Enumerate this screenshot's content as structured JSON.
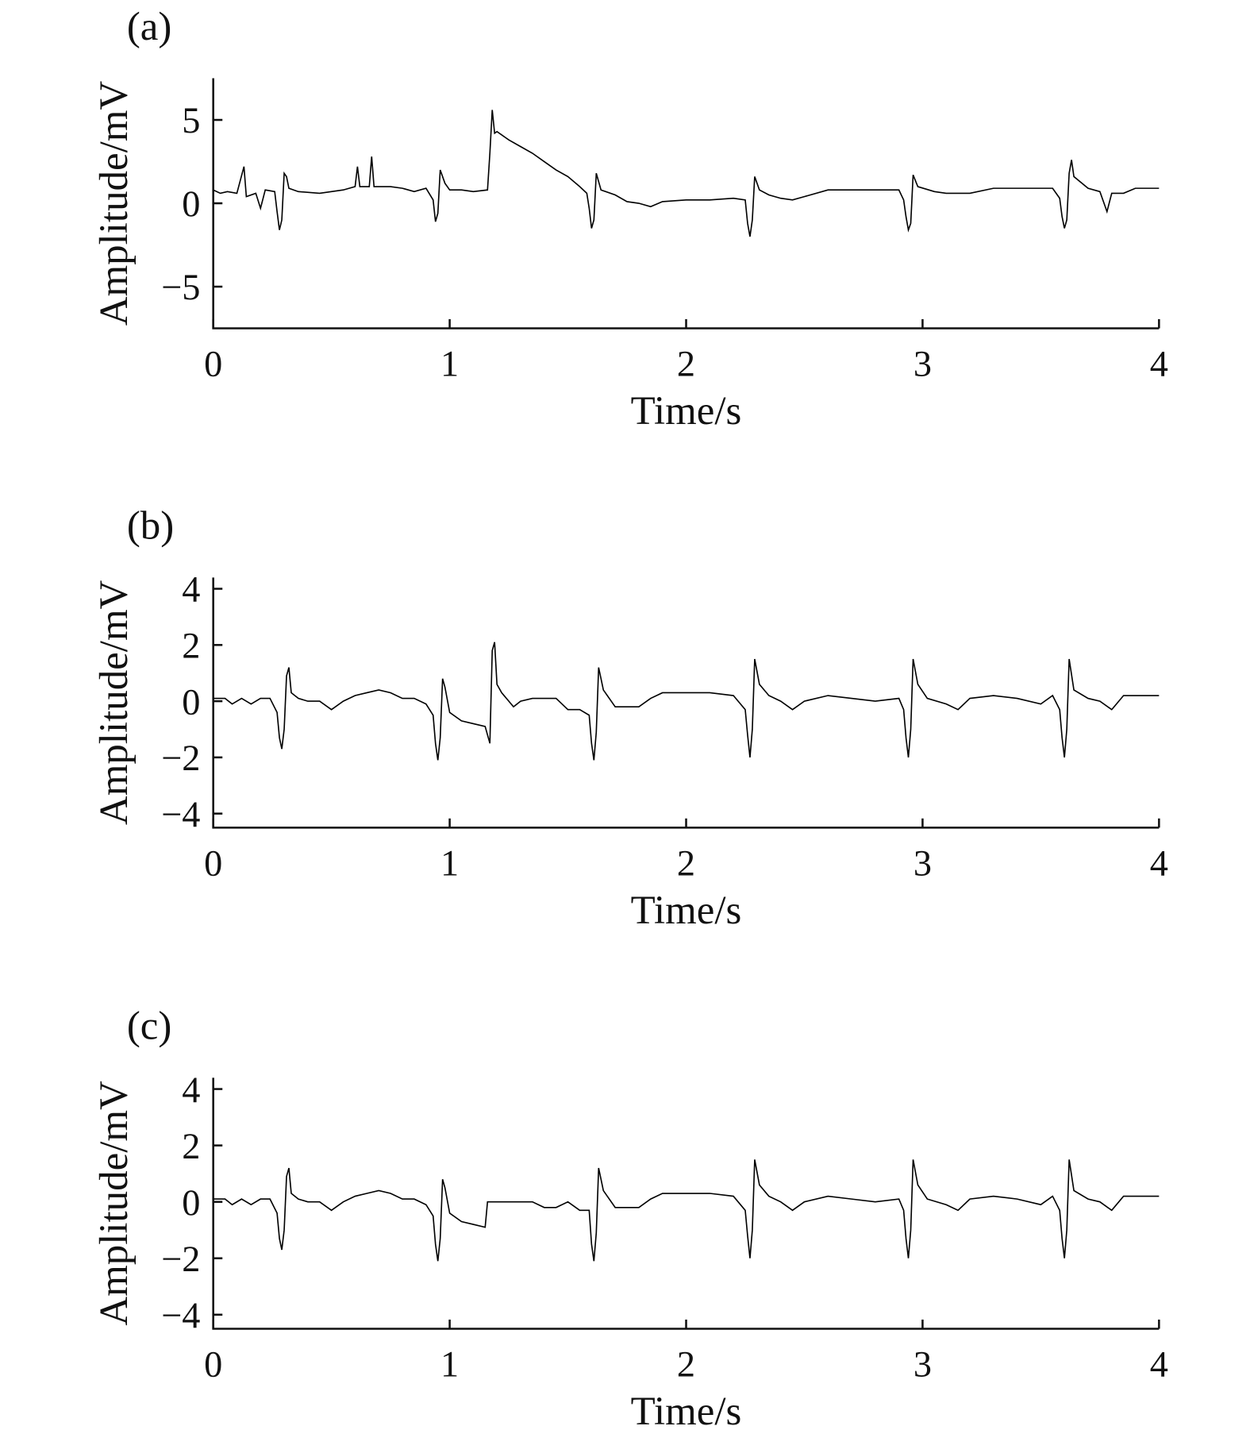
{
  "chart_data": [
    {
      "type": "line",
      "title": "(a)",
      "x_label": "Time/s",
      "y_label": "Amplitude/mV",
      "color": "#000000",
      "xlim": [
        0,
        4
      ],
      "xticks": [
        0,
        1,
        2,
        3,
        4
      ],
      "ylim": [
        -7.5,
        7.5
      ],
      "yticks": [
        {
          "value": -5,
          "label": "−5"
        },
        0,
        5
      ],
      "x": [
        0,
        0.03,
        0.06,
        0.1,
        0.13,
        0.14,
        0.18,
        0.2,
        0.22,
        0.26,
        0.27,
        0.28,
        0.29,
        0.3,
        0.31,
        0.32,
        0.36,
        0.45,
        0.5,
        0.55,
        0.6,
        0.61,
        0.62,
        0.66,
        0.67,
        0.68,
        0.75,
        0.8,
        0.85,
        0.9,
        0.93,
        0.94,
        0.95,
        0.96,
        0.98,
        1.0,
        1.05,
        1.1,
        1.16,
        1.17,
        1.18,
        1.19,
        1.2,
        1.25,
        1.3,
        1.35,
        1.4,
        1.45,
        1.5,
        1.55,
        1.58,
        1.59,
        1.6,
        1.61,
        1.62,
        1.64,
        1.7,
        1.75,
        1.8,
        1.85,
        1.9,
        2.0,
        2.1,
        2.2,
        2.25,
        2.26,
        2.27,
        2.28,
        2.29,
        2.31,
        2.35,
        2.4,
        2.45,
        2.5,
        2.6,
        2.7,
        2.8,
        2.9,
        2.92,
        2.93,
        2.94,
        2.95,
        2.96,
        2.98,
        3.05,
        3.1,
        3.2,
        3.3,
        3.4,
        3.5,
        3.55,
        3.58,
        3.59,
        3.6,
        3.61,
        3.62,
        3.63,
        3.64,
        3.7,
        3.75,
        3.78,
        3.8,
        3.85,
        3.9,
        4.0
      ],
      "values": [
        0.8,
        0.6,
        0.7,
        0.6,
        2.2,
        0.4,
        0.6,
        -0.3,
        0.8,
        0.7,
        -0.5,
        -1.6,
        -1.0,
        1.8,
        1.6,
        0.9,
        0.7,
        0.6,
        0.7,
        0.8,
        1.0,
        2.2,
        1.0,
        1.0,
        2.8,
        1.0,
        1.0,
        0.9,
        0.7,
        0.9,
        0.2,
        -1.1,
        -0.6,
        2.0,
        1.2,
        0.8,
        0.8,
        0.7,
        0.8,
        3.0,
        5.6,
        4.2,
        4.3,
        3.8,
        3.4,
        3.0,
        2.5,
        2.0,
        1.6,
        1.0,
        0.6,
        -0.3,
        -1.5,
        -1.0,
        1.8,
        0.8,
        0.5,
        0.1,
        0.0,
        -0.2,
        0.1,
        0.2,
        0.2,
        0.3,
        0.2,
        -1.2,
        -2.0,
        -1.0,
        1.6,
        0.8,
        0.5,
        0.3,
        0.2,
        0.4,
        0.8,
        0.8,
        0.8,
        0.8,
        0.2,
        -0.8,
        -1.6,
        -1.2,
        1.7,
        1.0,
        0.7,
        0.6,
        0.6,
        0.9,
        0.9,
        0.9,
        0.9,
        0.3,
        -0.8,
        -1.5,
        -1.0,
        1.8,
        2.6,
        1.6,
        0.9,
        0.7,
        -0.5,
        0.6,
        0.6,
        0.9,
        0.9
      ]
    },
    {
      "type": "line",
      "title": "(b)",
      "x_label": "Time/s",
      "y_label": "Amplitude/mV",
      "color": "#000000",
      "xlim": [
        0,
        4
      ],
      "xticks": [
        0,
        1,
        2,
        3,
        4
      ],
      "ylim": [
        -4.5,
        4.4
      ],
      "yticks": [
        {
          "value": -4,
          "label": "−4"
        },
        {
          "value": -2,
          "label": "−2"
        },
        0,
        2,
        4
      ],
      "x": [
        0,
        0.05,
        0.08,
        0.12,
        0.16,
        0.2,
        0.24,
        0.27,
        0.28,
        0.29,
        0.3,
        0.31,
        0.32,
        0.33,
        0.36,
        0.4,
        0.45,
        0.5,
        0.55,
        0.6,
        0.65,
        0.7,
        0.75,
        0.8,
        0.85,
        0.9,
        0.93,
        0.94,
        0.95,
        0.96,
        0.97,
        0.98,
        1.0,
        1.05,
        1.1,
        1.15,
        1.16,
        1.17,
        1.18,
        1.19,
        1.2,
        1.22,
        1.27,
        1.3,
        1.35,
        1.45,
        1.5,
        1.55,
        1.59,
        1.6,
        1.61,
        1.62,
        1.63,
        1.65,
        1.7,
        1.8,
        1.85,
        1.9,
        2.1,
        2.2,
        2.25,
        2.26,
        2.27,
        2.28,
        2.29,
        2.31,
        2.35,
        2.4,
        2.45,
        2.5,
        2.6,
        2.7,
        2.8,
        2.9,
        2.92,
        2.93,
        2.94,
        2.95,
        2.96,
        2.98,
        3.02,
        3.1,
        3.15,
        3.2,
        3.3,
        3.4,
        3.5,
        3.55,
        3.58,
        3.59,
        3.6,
        3.61,
        3.62,
        3.64,
        3.7,
        3.75,
        3.8,
        3.85,
        3.9,
        4.0
      ],
      "values": [
        0.1,
        0.1,
        -0.1,
        0.1,
        -0.1,
        0.1,
        0.1,
        -0.4,
        -1.3,
        -1.7,
        -1.0,
        0.9,
        1.2,
        0.3,
        0.1,
        0,
        0,
        -0.3,
        0,
        0.2,
        0.3,
        0.4,
        0.3,
        0.1,
        0.1,
        -0.1,
        -0.5,
        -1.5,
        -2.1,
        -1.3,
        0.8,
        0.5,
        -0.4,
        -0.7,
        -0.8,
        -0.9,
        -1.2,
        -1.5,
        1.8,
        2.1,
        0.6,
        0.3,
        -0.2,
        0,
        0.1,
        0.1,
        -0.3,
        -0.3,
        -0.5,
        -1.5,
        -2.1,
        -1.1,
        1.2,
        0.4,
        -0.2,
        -0.2,
        0.1,
        0.3,
        0.3,
        0.2,
        -0.3,
        -1.2,
        -2.0,
        -1.0,
        1.5,
        0.6,
        0.2,
        0,
        -0.3,
        0,
        0.2,
        0.1,
        0,
        0.1,
        -0.3,
        -1.3,
        -2.0,
        -1.0,
        1.5,
        0.6,
        0.1,
        -0.1,
        -0.3,
        0.1,
        0.2,
        0.1,
        -0.1,
        0.2,
        -0.3,
        -1.3,
        -2.0,
        -1.0,
        1.5,
        0.4,
        0.1,
        0,
        -0.3,
        0.2,
        0.2,
        0.2
      ]
    },
    {
      "type": "line",
      "title": "(c)",
      "x_label": "Time/s",
      "y_label": "Amplitude/mV",
      "color": "#000000",
      "xlim": [
        0,
        4
      ],
      "xticks": [
        0,
        1,
        2,
        3,
        4
      ],
      "ylim": [
        -4.5,
        4.4
      ],
      "yticks": [
        {
          "value": -4,
          "label": "−4"
        },
        {
          "value": -2,
          "label": "−2"
        },
        0,
        2,
        4
      ],
      "x": [
        0,
        0.05,
        0.08,
        0.12,
        0.16,
        0.2,
        0.24,
        0.27,
        0.28,
        0.29,
        0.3,
        0.31,
        0.32,
        0.33,
        0.36,
        0.4,
        0.45,
        0.5,
        0.55,
        0.6,
        0.65,
        0.7,
        0.75,
        0.8,
        0.85,
        0.9,
        0.93,
        0.94,
        0.95,
        0.96,
        0.97,
        0.98,
        1.0,
        1.05,
        1.1,
        1.15,
        1.16,
        1.35,
        1.4,
        1.45,
        1.5,
        1.55,
        1.59,
        1.6,
        1.61,
        1.62,
        1.63,
        1.65,
        1.7,
        1.8,
        1.85,
        1.9,
        2.1,
        2.2,
        2.25,
        2.26,
        2.27,
        2.28,
        2.29,
        2.31,
        2.35,
        2.4,
        2.45,
        2.5,
        2.6,
        2.7,
        2.8,
        2.9,
        2.92,
        2.93,
        2.94,
        2.95,
        2.96,
        2.98,
        3.02,
        3.1,
        3.15,
        3.2,
        3.3,
        3.4,
        3.5,
        3.55,
        3.58,
        3.59,
        3.6,
        3.61,
        3.62,
        3.64,
        3.7,
        3.75,
        3.8,
        3.85,
        3.9,
        4.0
      ],
      "values": [
        0.1,
        0.1,
        -0.1,
        0.1,
        -0.1,
        0.1,
        0.1,
        -0.4,
        -1.3,
        -1.7,
        -1.0,
        0.9,
        1.2,
        0.3,
        0.1,
        0,
        0,
        -0.3,
        0,
        0.2,
        0.3,
        0.4,
        0.3,
        0.1,
        0.1,
        -0.1,
        -0.5,
        -1.5,
        -2.1,
        -1.3,
        0.8,
        0.5,
        -0.4,
        -0.7,
        -0.8,
        -0.9,
        0,
        0,
        -0.2,
        -0.2,
        0,
        -0.3,
        -0.3,
        -1.5,
        -2.1,
        -1.1,
        1.2,
        0.4,
        -0.2,
        -0.2,
        0.1,
        0.3,
        0.3,
        0.2,
        -0.3,
        -1.2,
        -2.0,
        -1.0,
        1.5,
        0.6,
        0.2,
        0,
        -0.3,
        0,
        0.2,
        0.1,
        0,
        0.1,
        -0.3,
        -1.3,
        -2.0,
        -1.0,
        1.5,
        0.6,
        0.1,
        -0.1,
        -0.3,
        0.1,
        0.2,
        0.1,
        -0.1,
        0.2,
        -0.3,
        -1.3,
        -2.0,
        -1.0,
        1.5,
        0.4,
        0.1,
        0,
        -0.3,
        0.2,
        0.2,
        0.2
      ]
    }
  ]
}
